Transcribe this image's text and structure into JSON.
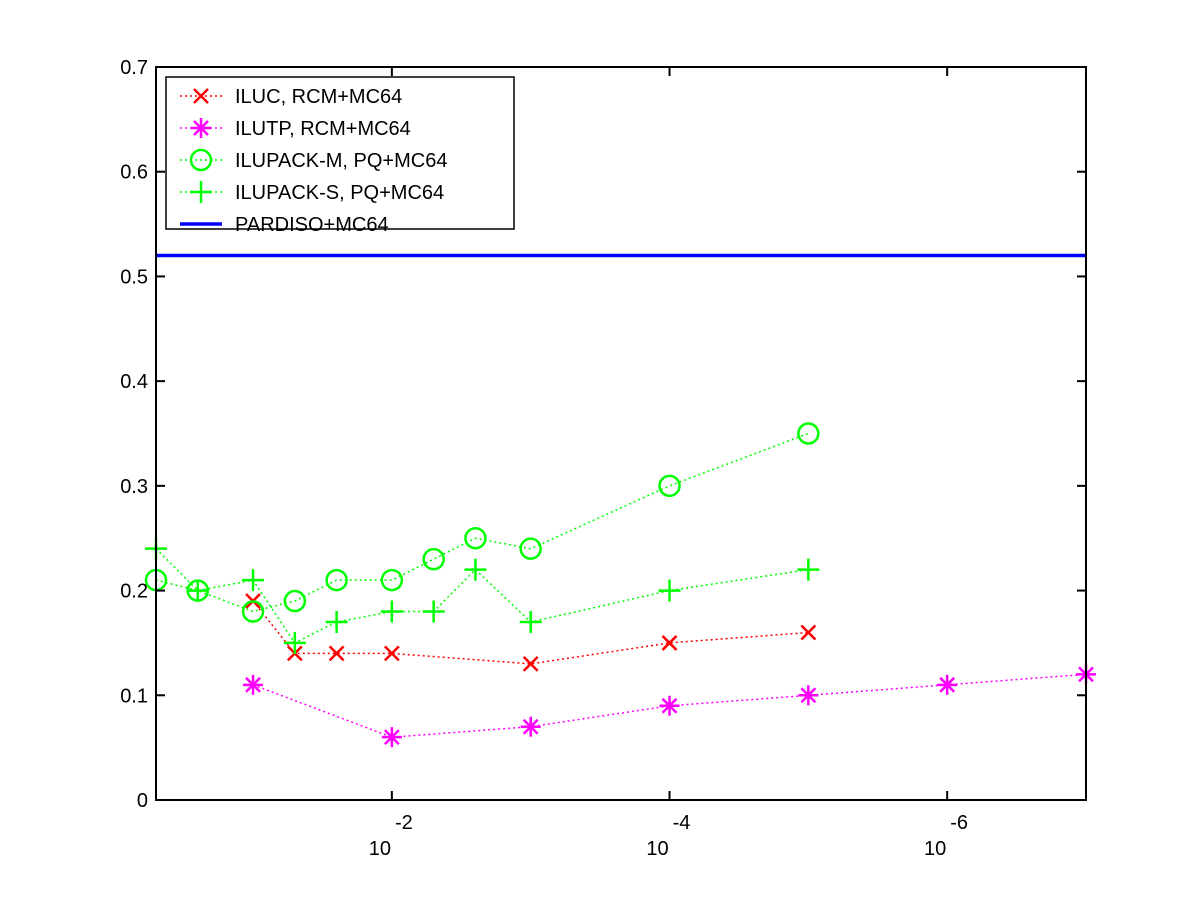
{
  "chart_data": {
    "type": "line",
    "x_scale": "log",
    "x_reversed": true,
    "xlim": [
      0.5,
      1e-07
    ],
    "ylim": [
      0,
      0.7
    ],
    "xticks": [
      {
        "value": 0.01,
        "base": "10",
        "exp": "-2"
      },
      {
        "value": 0.0001,
        "base": "10",
        "exp": "-4"
      },
      {
        "value": 1e-06,
        "base": "10",
        "exp": "-6"
      }
    ],
    "yticks": [
      0,
      0.1,
      0.2,
      0.3,
      0.4,
      0.5,
      0.6,
      0.7
    ],
    "grid": false,
    "legend_position": "top-left",
    "series": [
      {
        "name": "ILUC, RCM+MC64",
        "color": "#ff0000",
        "marker": "x",
        "line_style": "dotted",
        "x": [
          0.1,
          0.05,
          0.025,
          0.01,
          0.001,
          0.0001,
          1e-05
        ],
        "y": [
          0.19,
          0.14,
          0.14,
          0.14,
          0.13,
          0.15,
          0.16
        ]
      },
      {
        "name": "ILUTP, RCM+MC64",
        "color": "#ff00ff",
        "marker": "asterisk",
        "line_style": "dotted",
        "x": [
          0.1,
          0.01,
          0.001,
          0.0001,
          1e-05,
          1e-06,
          1e-07
        ],
        "y": [
          0.11,
          0.06,
          0.07,
          0.09,
          0.1,
          0.11,
          0.12
        ]
      },
      {
        "name": "ILUPACK-M, PQ+MC64",
        "color": "#00ff00",
        "marker": "circle",
        "line_style": "dotted",
        "x": [
          0.5,
          0.25,
          0.1,
          0.05,
          0.025,
          0.01,
          0.005,
          0.0025,
          0.001,
          0.0001,
          1e-05
        ],
        "y": [
          0.21,
          0.2,
          0.18,
          0.19,
          0.21,
          0.21,
          0.23,
          0.25,
          0.24,
          0.3,
          0.35
        ]
      },
      {
        "name": "ILUPACK-S, PQ+MC64",
        "color": "#00ff00",
        "marker": "plus",
        "line_style": "dotted",
        "x": [
          0.5,
          0.25,
          0.1,
          0.05,
          0.025,
          0.01,
          0.005,
          0.0025,
          0.001,
          0.0001,
          1e-05
        ],
        "y": [
          0.24,
          0.2,
          0.21,
          0.15,
          0.17,
          0.18,
          0.18,
          0.22,
          0.17,
          0.2,
          0.22
        ]
      },
      {
        "name": "PARDISO+MC64",
        "color": "#0000ff",
        "marker": "none",
        "line_style": "solid",
        "x": [
          0.5,
          1e-07
        ],
        "y": [
          0.52,
          0.52
        ]
      }
    ]
  }
}
